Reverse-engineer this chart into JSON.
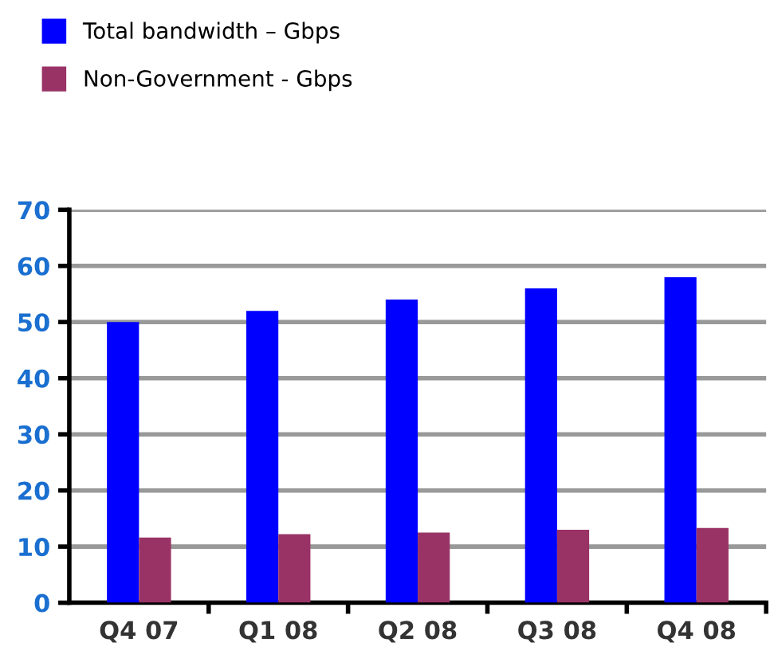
{
  "chart_data": {
    "type": "bar",
    "categories": [
      "Q4 07",
      "Q1 08",
      "Q2 08",
      "Q3 08",
      "Q4 08"
    ],
    "series": [
      {
        "name": "Total bandwidth – Gbps",
        "color": "#0000ff",
        "values": [
          50,
          52,
          54,
          56,
          58
        ]
      },
      {
        "name": "Non-Government - Gbps",
        "color": "#993366",
        "values": [
          11.6,
          12.2,
          12.5,
          13.0,
          13.3
        ]
      }
    ],
    "ylim": [
      0,
      70
    ],
    "yticks": [
      0,
      10,
      20,
      30,
      40,
      50,
      60,
      70
    ],
    "grid": "y",
    "legend": "top left"
  }
}
